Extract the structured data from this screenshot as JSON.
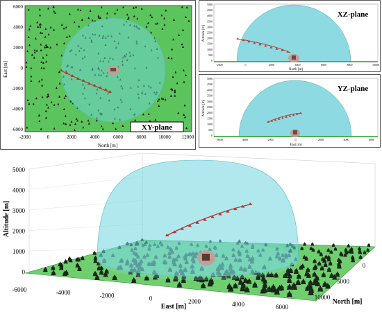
{
  "panels": {
    "xy": {
      "label": "XY-plane",
      "ylabel": "East [m]",
      "xlabel": "North [m]",
      "yticks": [
        "6000",
        "4000",
        "2000",
        "0",
        "-2000",
        "-4000",
        "-6000"
      ],
      "xticks": [
        "-2000",
        "0",
        "2000",
        "4000",
        "6000",
        "8000",
        "10000",
        "12000"
      ]
    },
    "xz": {
      "label": "XZ-plane",
      "ylabel": "Altitude [m]",
      "xlabel": "North [m]",
      "yticks": [
        "5000",
        "4500",
        "4000",
        "3500",
        "3000",
        "2500",
        "2000",
        "1500",
        "1000",
        "500",
        "0"
      ],
      "xticks": [
        "-2000",
        "0",
        "2000",
        "4000",
        "6000",
        "8000",
        "10000"
      ]
    },
    "yz": {
      "label": "YZ-plane",
      "ylabel": "Altitude [m]",
      "xlabel": "East [m]",
      "yticks": [
        "5000",
        "4500",
        "4000",
        "3500",
        "3000",
        "2500",
        "2000",
        "1500",
        "1000",
        "500",
        "0"
      ],
      "xticks": [
        "-6000",
        "-4000",
        "-2000",
        "0",
        "2000",
        "4000",
        "6000"
      ]
    },
    "main": {
      "zlabel": "Altitude [m]",
      "xlabel": "East [m]",
      "ylabel": "North [m]",
      "zticks": [
        "5000",
        "4000",
        "3000",
        "2000",
        "1000",
        "0"
      ],
      "xticks": [
        "-6000",
        "-4000",
        "-2000",
        "0",
        "2000",
        "4000",
        "6000"
      ],
      "yticks": [
        "0",
        "5000",
        "10000"
      ]
    }
  },
  "colors": {
    "ground": "#52c452",
    "dome": "#5fd6e0",
    "trajectory": "#b03a2e",
    "trees": "#111111"
  }
}
